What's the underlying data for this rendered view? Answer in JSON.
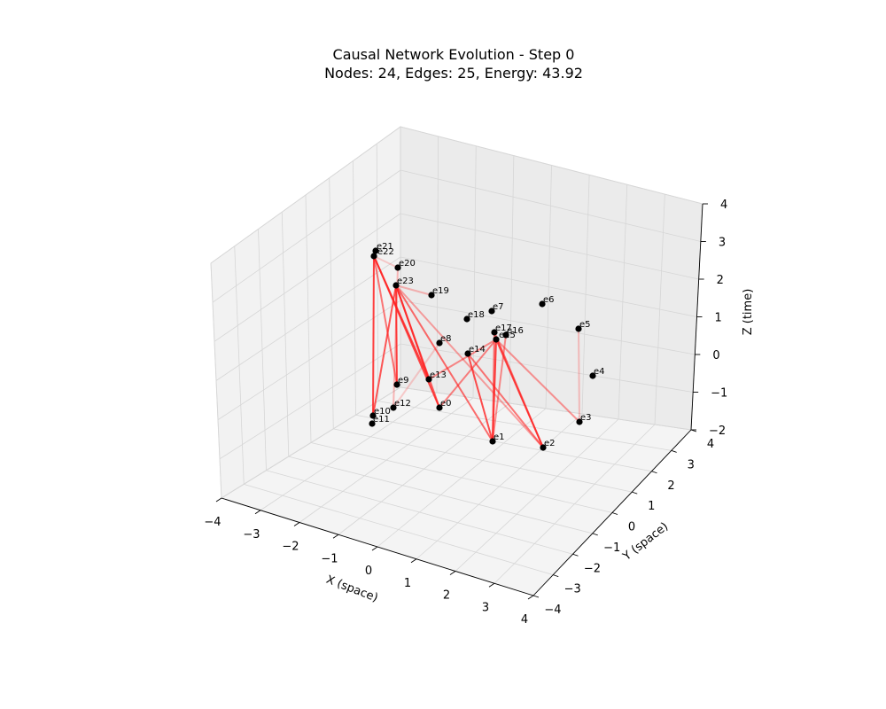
{
  "chart_data": {
    "type": "scatter",
    "title": "Causal Network Evolution - Step 0",
    "subtitle": "Nodes: 24, Edges: 25, Energy: 43.92",
    "xlabel": "X (space)",
    "ylabel": "Y (space)",
    "zlabel": "Z (time)",
    "xlim": [
      -4,
      4
    ],
    "ylim": [
      -4,
      4
    ],
    "zlim": [
      -2,
      4
    ],
    "x_ticks": [
      "−4",
      "−3",
      "−2",
      "−1",
      "0",
      "1",
      "2",
      "3",
      "4"
    ],
    "y_ticks": [
      "−4",
      "−3",
      "−2",
      "−1",
      "0",
      "1",
      "2",
      "3",
      "4"
    ],
    "z_ticks": [
      "−2",
      "−1",
      "0",
      "1",
      "2",
      "3",
      "4"
    ],
    "grid": true,
    "node_color": "#000000",
    "edge_color": "#ff2020",
    "nodes": [
      {
        "label": "e0"
      },
      {
        "label": "e1"
      },
      {
        "label": "e2"
      },
      {
        "label": "e3"
      },
      {
        "label": "e4"
      },
      {
        "label": "e5"
      },
      {
        "label": "e6"
      },
      {
        "label": "e7"
      },
      {
        "label": "e8"
      },
      {
        "label": "e9"
      },
      {
        "label": "e10"
      },
      {
        "label": "e11"
      },
      {
        "label": "e12"
      },
      {
        "label": "e13"
      },
      {
        "label": "e14"
      },
      {
        "label": "e15"
      },
      {
        "label": "e16"
      },
      {
        "label": "e17"
      },
      {
        "label": "e18"
      },
      {
        "label": "e19"
      },
      {
        "label": "e20"
      },
      {
        "label": "e21"
      },
      {
        "label": "e22"
      },
      {
        "label": "e23"
      }
    ],
    "edges": [
      {
        "from": "e22",
        "to": "e10",
        "strength": 0.85
      },
      {
        "from": "e22",
        "to": "e9",
        "strength": 0.6
      },
      {
        "from": "e22",
        "to": "e13",
        "strength": 0.8
      },
      {
        "from": "e22",
        "to": "e0",
        "strength": 0.8
      },
      {
        "from": "e22",
        "to": "e20",
        "strength": 0.2
      },
      {
        "from": "e23",
        "to": "e10",
        "strength": 0.75
      },
      {
        "from": "e23",
        "to": "e9",
        "strength": 0.85
      },
      {
        "from": "e23",
        "to": "e13",
        "strength": 0.8
      },
      {
        "from": "e23",
        "to": "e0",
        "strength": 0.7
      },
      {
        "from": "e23",
        "to": "e1",
        "strength": 0.65
      },
      {
        "from": "e23",
        "to": "e19",
        "strength": 0.3
      },
      {
        "from": "e23",
        "to": "e2",
        "strength": 0.4
      },
      {
        "from": "e20",
        "to": "e12",
        "strength": 0.3
      },
      {
        "from": "e8",
        "to": "e12",
        "strength": 0.2
      },
      {
        "from": "e15",
        "to": "e1",
        "strength": 0.85
      },
      {
        "from": "e15",
        "to": "e2",
        "strength": 0.8
      },
      {
        "from": "e15",
        "to": "e3",
        "strength": 0.45
      },
      {
        "from": "e15",
        "to": "e13",
        "strength": 0.5
      },
      {
        "from": "e15",
        "to": "e0",
        "strength": 0.55
      },
      {
        "from": "e17",
        "to": "e1",
        "strength": 0.6
      },
      {
        "from": "e17",
        "to": "e2",
        "strength": 0.65
      },
      {
        "from": "e14",
        "to": "e1",
        "strength": 0.8
      },
      {
        "from": "e14",
        "to": "e2",
        "strength": 0.6
      },
      {
        "from": "e16",
        "to": "e1",
        "strength": 0.5
      },
      {
        "from": "e5",
        "to": "e3",
        "strength": 0.25
      }
    ]
  }
}
